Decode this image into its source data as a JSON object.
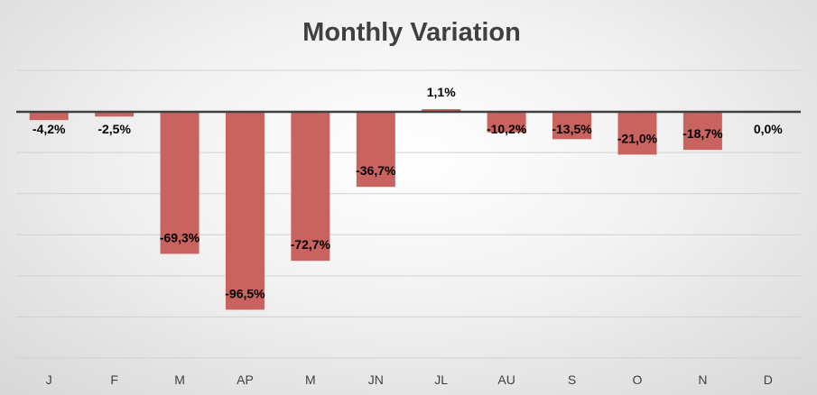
{
  "chart_data": {
    "type": "bar",
    "title": "Monthly Variation",
    "xlabel": "",
    "ylabel": "",
    "categories": [
      "J",
      "F",
      "M",
      "AP",
      "M",
      "JN",
      "JL",
      "AU",
      "S",
      "O",
      "N",
      "D"
    ],
    "values": [
      -4.2,
      -2.5,
      -69.3,
      -96.5,
      -72.7,
      -36.7,
      1.1,
      -10.2,
      -13.5,
      -21.0,
      -18.7,
      0.0
    ],
    "data_labels": [
      "-4,2%",
      "-2,5%",
      "-69,3%",
      "-96,5%",
      "-72,7%",
      "-36,7%",
      "1,1%",
      "-10,2%",
      "-13,5%",
      "-21,0%",
      "-18,7%",
      "0,0%"
    ],
    "ylim": [
      -120,
      20
    ],
    "grid": true,
    "bar_color": "#c9635f"
  }
}
